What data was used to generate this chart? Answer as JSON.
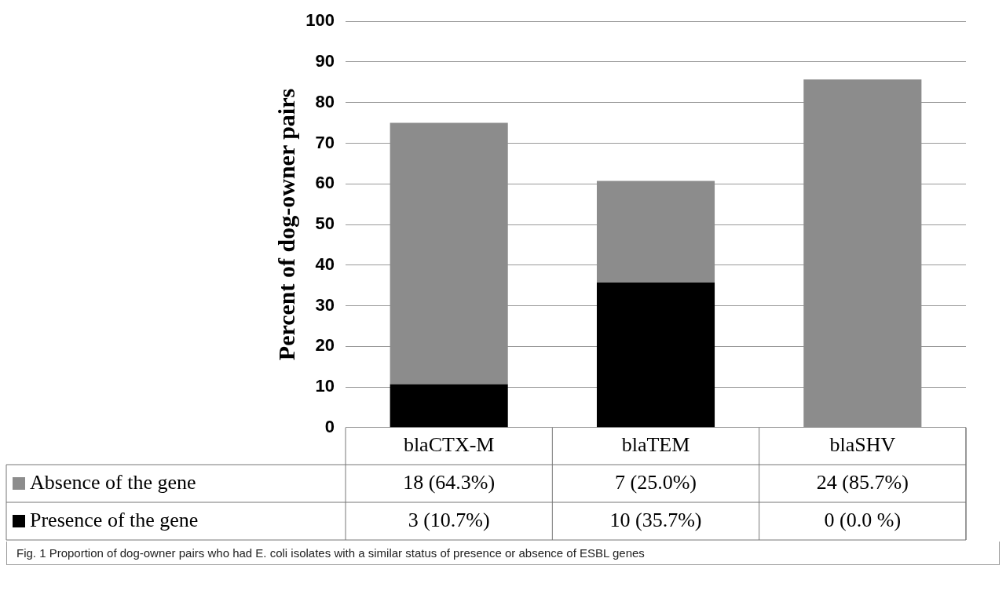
{
  "chart_data": {
    "type": "bar",
    "stacked": true,
    "ylabel": "Percent of dog-owner pairs",
    "categories": [
      "blaCTX-M",
      "blaTEM",
      "blaSHV"
    ],
    "series": [
      {
        "name": "Presence of the gene",
        "color": "#000000",
        "values": [
          10.7,
          35.7,
          0.0
        ],
        "value_labels": [
          "3 (10.7%)",
          "10 (35.7%)",
          "0 (0.0 %)"
        ]
      },
      {
        "name": "Absence of the gene",
        "color": "#8c8c8c",
        "values": [
          64.3,
          25.0,
          85.7
        ],
        "value_labels": [
          "18 (64.3%)",
          "7 (25.0%)",
          "24 (85.7%)"
        ]
      }
    ],
    "ylim": [
      0,
      100
    ],
    "yticks": [
      0,
      10,
      20,
      30,
      40,
      50,
      60,
      70,
      80,
      90,
      100
    ],
    "grid": "y",
    "legend": "bottom",
    "annotations": [
      "Fig. 1 Proportion of dog-owner pairs who had E. coli isolates with a similar status of presence or absence of ESBL genes"
    ]
  }
}
